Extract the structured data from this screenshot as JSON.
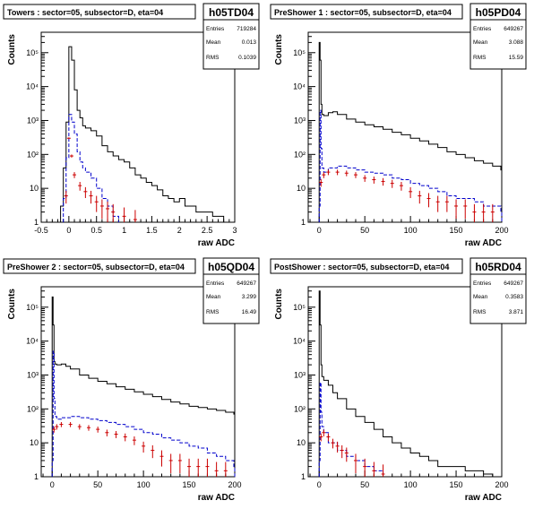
{
  "chart_data": [
    {
      "type": "histogram",
      "title": "Towers : sector=05, subsector=D, eta=04",
      "stats": {
        "name": "h05TD04",
        "entries_label": "Entries",
        "entries": "719284",
        "mean_label": "Mean",
        "mean": "0.013",
        "rms_label": "RMS",
        "rms": "0.1039"
      },
      "ylabel": "Counts",
      "xlabel": "raw ADC",
      "xlim": [
        -0.5,
        3
      ],
      "ylim": [
        1,
        400000
      ],
      "log_y": true,
      "x_ticks": [
        -0.5,
        0,
        0.5,
        1,
        1.5,
        2,
        2.5,
        3
      ],
      "x_tick_labels": [
        "-0.5",
        "0",
        "0.5",
        "1",
        "1.5",
        "2",
        "2.5",
        "3"
      ],
      "y_ticks": [
        1,
        10,
        100,
        1000,
        10000,
        100000
      ],
      "y_tick_labels": [
        "1",
        "10",
        "10²",
        "10³",
        "10⁴",
        "10⁵"
      ],
      "series": [
        {
          "style": "solid",
          "color": "#000000",
          "x": [
            -0.2,
            -0.15,
            -0.1,
            -0.05,
            0,
            0.05,
            0.1,
            0.15,
            0.2,
            0.25,
            0.3,
            0.4,
            0.5,
            0.6,
            0.7,
            0.8,
            0.9,
            1.0,
            1.1,
            1.2,
            1.3,
            1.4,
            1.5,
            1.6,
            1.7,
            1.8,
            1.9,
            2.0,
            2.1,
            2.2,
            2.3,
            2.4,
            2.5,
            2.6,
            2.7,
            2.8,
            2.9
          ],
          "y": [
            1,
            3,
            40,
            900,
            150000,
            60000,
            8000,
            2000,
            1200,
            700,
            600,
            500,
            350,
            180,
            120,
            90,
            70,
            60,
            40,
            25,
            20,
            15,
            12,
            9,
            6,
            5,
            4,
            5,
            3,
            3,
            2,
            2,
            2,
            1.5,
            1.5,
            1,
            1
          ]
        },
        {
          "style": "dashed",
          "color": "#0000cc",
          "x": [
            -0.1,
            -0.05,
            0,
            0.05,
            0.1,
            0.15,
            0.2,
            0.25,
            0.3,
            0.4,
            0.5,
            0.6,
            0.7,
            0.8
          ],
          "y": [
            5,
            80,
            1500,
            900,
            400,
            120,
            60,
            40,
            30,
            20,
            10,
            5,
            3,
            1.5
          ]
        },
        {
          "style": "error-bars",
          "color": "#cc0000",
          "x": [
            -0.05,
            0,
            0.05,
            0.1,
            0.2,
            0.3,
            0.4,
            0.5,
            0.6,
            0.7,
            0.8,
            1.0,
            1.2
          ],
          "y": [
            6,
            300,
            90,
            25,
            12,
            8,
            6,
            4,
            3,
            2.5,
            2,
            1.5,
            1.2
          ]
        }
      ]
    },
    {
      "type": "histogram",
      "title": "PreShower 1 : sector=05, subsector=D, eta=04",
      "stats": {
        "name": "h05PD04",
        "entries_label": "Entries",
        "entries": "649267",
        "mean_label": "Mean",
        "mean": "3.088",
        "rms_label": "RMS",
        "rms": "15.59"
      },
      "ylabel": "Counts",
      "xlabel": "raw ADC",
      "xlim": [
        -12,
        200
      ],
      "ylim": [
        1,
        400000
      ],
      "log_y": true,
      "x_ticks": [
        0,
        50,
        100,
        150,
        200
      ],
      "x_tick_labels": [
        "0",
        "50",
        "100",
        "150",
        "200"
      ],
      "y_ticks": [
        1,
        10,
        100,
        1000,
        10000,
        100000
      ],
      "y_tick_labels": [
        "1",
        "10",
        "10²",
        "10³",
        "10⁴",
        "10⁵"
      ],
      "series": [
        {
          "style": "solid",
          "color": "#000000",
          "x": [
            -2,
            0,
            1,
            2,
            3,
            5,
            10,
            15,
            20,
            30,
            40,
            50,
            60,
            70,
            80,
            90,
            100,
            110,
            120,
            130,
            140,
            150,
            160,
            170,
            180,
            190,
            199
          ],
          "y": [
            1,
            200000,
            60000,
            3000,
            1500,
            1400,
            1700,
            1800,
            1500,
            1100,
            900,
            750,
            650,
            550,
            450,
            380,
            300,
            250,
            200,
            160,
            120,
            100,
            80,
            65,
            55,
            45,
            35
          ]
        },
        {
          "style": "dashed",
          "color": "#0000cc",
          "x": [
            0,
            1,
            2,
            3,
            5,
            10,
            20,
            30,
            40,
            50,
            60,
            70,
            80,
            90,
            100,
            110,
            120,
            130,
            140,
            150,
            160,
            170,
            180,
            190,
            199
          ],
          "y": [
            3,
            2000,
            150,
            40,
            30,
            40,
            45,
            40,
            35,
            30,
            28,
            25,
            20,
            18,
            14,
            12,
            10,
            8,
            6,
            5,
            5,
            4,
            3,
            3,
            2
          ]
        },
        {
          "style": "error-bars",
          "color": "#cc0000",
          "x": [
            2,
            5,
            10,
            20,
            30,
            40,
            50,
            60,
            70,
            80,
            90,
            100,
            110,
            120,
            130,
            140,
            150,
            160,
            170,
            180,
            190
          ],
          "y": [
            15,
            25,
            30,
            30,
            28,
            25,
            20,
            18,
            16,
            14,
            12,
            8,
            6,
            5,
            4,
            4,
            3,
            3,
            2,
            2,
            2
          ]
        }
      ]
    },
    {
      "type": "histogram",
      "title": "PreShower 2 : sector=05, subsector=D, eta=04",
      "stats": {
        "name": "h05QD04",
        "entries_label": "Entries",
        "entries": "649267",
        "mean_label": "Mean",
        "mean": "3.299",
        "rms_label": "RMS",
        "rms": "16.49"
      },
      "ylabel": "Counts",
      "xlabel": "raw ADC",
      "xlim": [
        -12,
        200
      ],
      "ylim": [
        1,
        400000
      ],
      "log_y": true,
      "x_ticks": [
        0,
        50,
        100,
        150,
        200
      ],
      "x_tick_labels": [
        "0",
        "50",
        "100",
        "150",
        "200"
      ],
      "y_ticks": [
        1,
        10,
        100,
        1000,
        10000,
        100000
      ],
      "y_tick_labels": [
        "1",
        "10",
        "10²",
        "10³",
        "10⁴",
        "10⁵"
      ],
      "series": [
        {
          "style": "solid",
          "color": "#000000",
          "x": [
            -2,
            0,
            1,
            2,
            3,
            5,
            10,
            15,
            20,
            30,
            40,
            50,
            60,
            70,
            80,
            90,
            100,
            110,
            120,
            130,
            140,
            150,
            160,
            170,
            180,
            190,
            199
          ],
          "y": [
            1,
            200000,
            30000,
            2500,
            2100,
            2000,
            2100,
            1800,
            1500,
            1000,
            800,
            650,
            550,
            450,
            380,
            320,
            270,
            230,
            190,
            160,
            140,
            120,
            110,
            100,
            90,
            80,
            70
          ]
        },
        {
          "style": "dashed",
          "color": "#0000cc",
          "x": [
            0,
            1,
            2,
            3,
            5,
            10,
            20,
            30,
            40,
            50,
            60,
            70,
            80,
            90,
            100,
            110,
            120,
            130,
            140,
            150,
            160,
            170,
            180,
            190,
            199
          ],
          "y": [
            3,
            5000,
            200,
            60,
            50,
            55,
            60,
            55,
            50,
            45,
            40,
            35,
            30,
            25,
            20,
            18,
            14,
            12,
            10,
            8,
            7,
            5,
            4,
            3,
            2
          ]
        },
        {
          "style": "error-bars",
          "color": "#cc0000",
          "x": [
            2,
            5,
            10,
            20,
            30,
            40,
            50,
            60,
            70,
            80,
            90,
            100,
            110,
            120,
            130,
            140,
            150,
            160,
            170,
            180,
            190
          ],
          "y": [
            25,
            30,
            35,
            35,
            30,
            28,
            25,
            20,
            18,
            15,
            12,
            8,
            6,
            4,
            3,
            3,
            2,
            2,
            2,
            1.5,
            1.5
          ]
        }
      ]
    },
    {
      "type": "histogram",
      "title": "PostShower : sector=05, subsector=D, eta=04",
      "stats": {
        "name": "h05RD04",
        "entries_label": "Entries",
        "entries": "649267",
        "mean_label": "Mean",
        "mean": "0.3583",
        "rms_label": "RMS",
        "rms": "3.871"
      },
      "ylabel": "Counts",
      "xlabel": "raw ADC",
      "xlim": [
        -12,
        200
      ],
      "ylim": [
        1,
        400000
      ],
      "log_y": true,
      "x_ticks": [
        0,
        50,
        100,
        150,
        200
      ],
      "x_tick_labels": [
        "0",
        "50",
        "100",
        "150",
        "200"
      ],
      "y_ticks": [
        1,
        10,
        100,
        1000,
        10000,
        100000
      ],
      "y_tick_labels": [
        "1",
        "10",
        "10²",
        "10³",
        "10⁴",
        "10⁵"
      ],
      "series": [
        {
          "style": "solid",
          "color": "#000000",
          "x": [
            -2,
            0,
            1,
            2,
            3,
            5,
            10,
            15,
            20,
            30,
            40,
            50,
            60,
            70,
            80,
            90,
            100,
            110,
            120,
            130,
            140,
            150,
            160,
            170,
            180,
            190,
            199
          ],
          "y": [
            1,
            300000,
            30000,
            2000,
            900,
            700,
            500,
            300,
            200,
            100,
            60,
            40,
            25,
            15,
            10,
            7,
            5,
            4,
            3,
            2,
            2,
            2,
            1.5,
            1.5,
            1.2,
            1,
            1
          ]
        },
        {
          "style": "dashed",
          "color": "#0000cc",
          "x": [
            0,
            1,
            2,
            3,
            5,
            10,
            20,
            30,
            40,
            50,
            60
          ],
          "y": [
            3,
            600,
            80,
            30,
            20,
            10,
            6,
            4,
            3,
            2,
            1.5
          ]
        },
        {
          "style": "error-bars",
          "color": "#cc0000",
          "x": [
            2,
            5,
            10,
            15,
            20,
            25,
            30,
            40,
            50,
            60,
            70
          ],
          "y": [
            15,
            20,
            15,
            10,
            8,
            6,
            5,
            3,
            2,
            1.5,
            1.2
          ]
        }
      ]
    }
  ]
}
